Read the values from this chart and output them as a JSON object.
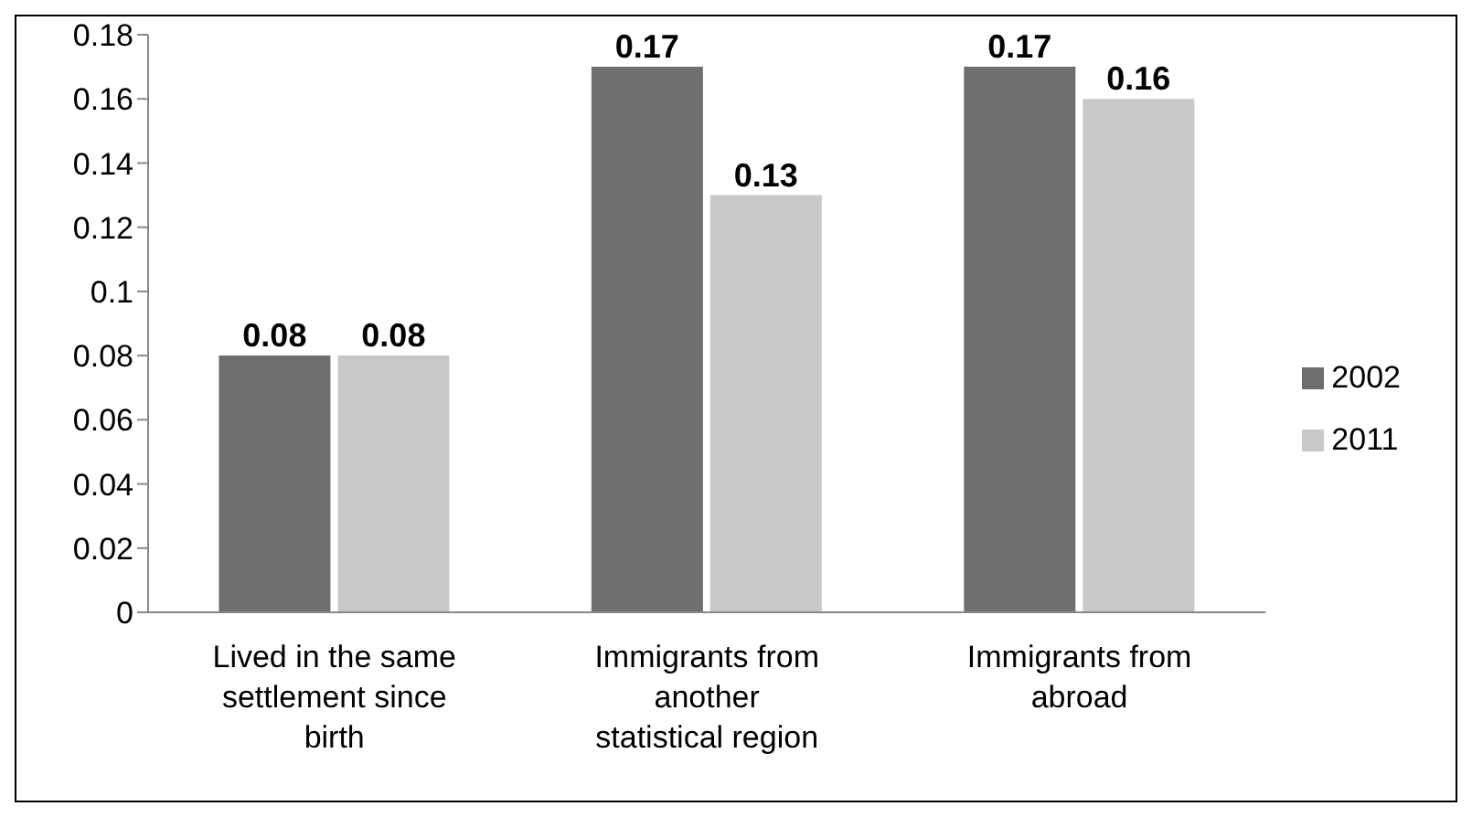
{
  "chart_data": {
    "type": "bar",
    "categories": [
      "Lived in the same settlement since birth",
      "Immigrants from another statistical region",
      "Immigrants from abroad"
    ],
    "series": [
      {
        "name": "2002",
        "color": "#6e6e6e",
        "values": [
          0.08,
          0.17,
          0.17
        ]
      },
      {
        "name": "2011",
        "color": "#c8c8c8",
        "values": [
          0.08,
          0.13,
          0.16
        ]
      }
    ],
    "ylim": [
      0,
      0.18
    ],
    "yticks": [
      0,
      0.02,
      0.04,
      0.06,
      0.08,
      0.1,
      0.12,
      0.14,
      0.16,
      0.18
    ],
    "data_labels": true,
    "legend": "right",
    "grid": false
  }
}
